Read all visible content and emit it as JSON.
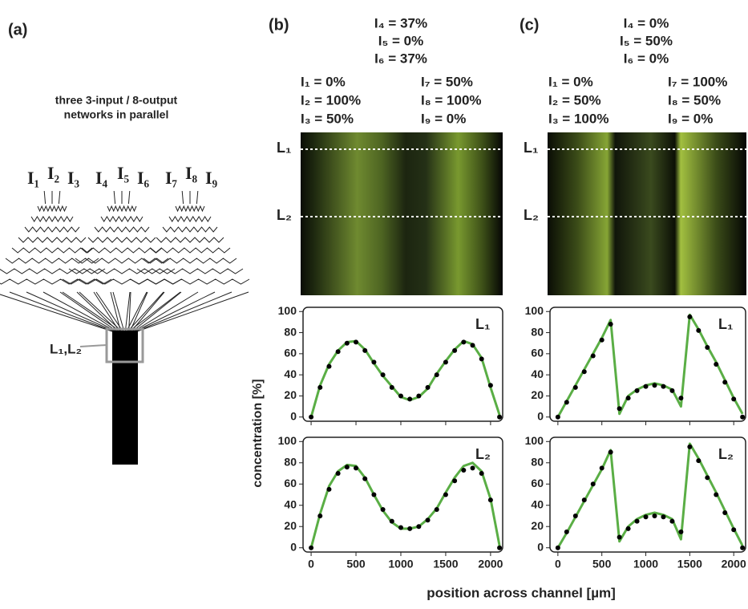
{
  "panel_a": {
    "label": "(a)",
    "title": [
      "three 3-input / 8-output",
      "networks in parallel"
    ],
    "inputs": [
      "I₁",
      "I₂",
      "I₃",
      "I₄",
      "I₅",
      "I₆",
      "I₇",
      "I₈",
      "I₉"
    ],
    "box_label": "L₁,L₂"
  },
  "panel_b": {
    "label": "(b)",
    "top": [
      "I₄ = 37%",
      "I₅ = 0%",
      "I₆ = 37%"
    ],
    "left": [
      "I₁ = 0%",
      "I₂ = 100%",
      "I₃ = 50%"
    ],
    "right": [
      "I₇ = 50%",
      "I₈ = 100%",
      "I₉ = 0%"
    ],
    "lines": [
      "L₁",
      "L₂"
    ]
  },
  "panel_c": {
    "label": "(c)",
    "top": [
      "I₄ = 0%",
      "I₅ = 50%",
      "I₆ = 0%"
    ],
    "left": [
      "I₁ = 0%",
      "I₂ = 50%",
      "I₃ = 100%"
    ],
    "right": [
      "I₇ = 100%",
      "I₈ = 50%",
      "I₉ = 0%"
    ],
    "lines": [
      "L₁",
      "L₂"
    ]
  },
  "y_label": "concentration [%]",
  "x_label": "position across channel [µm]",
  "chart_data": [
    {
      "type": "line",
      "annotation": "L₁",
      "x_tick_labels": false,
      "x": [
        0,
        100,
        200,
        300,
        400,
        500,
        600,
        700,
        800,
        900,
        1000,
        1100,
        1200,
        1300,
        1400,
        1500,
        1600,
        1700,
        1800,
        1900,
        2000,
        2100
      ],
      "xlim": [
        -90,
        2135
      ],
      "ylim": [
        -4,
        104
      ],
      "xticks": [
        0,
        500,
        1000,
        1500,
        2000
      ],
      "yticks": [
        0,
        20,
        40,
        60,
        80,
        100
      ],
      "series": [
        {
          "color": "#5aae45",
          "style": "line",
          "values": [
            0,
            30,
            50,
            63,
            71,
            72,
            64,
            51,
            39,
            29,
            19,
            16,
            19,
            27,
            41,
            53,
            64,
            72,
            69,
            56,
            28,
            2
          ]
        },
        {
          "color": "#000000",
          "style": "dots",
          "values": [
            0,
            28,
            48,
            62,
            70,
            71,
            63,
            52,
            40,
            28,
            20,
            17,
            20,
            28,
            40,
            52,
            63,
            71,
            68,
            55,
            30,
            0
          ]
        }
      ]
    },
    {
      "type": "line",
      "annotation": "L₂",
      "x_tick_labels": true,
      "x": [
        0,
        100,
        200,
        300,
        400,
        500,
        600,
        700,
        800,
        900,
        1000,
        1100,
        1200,
        1300,
        1400,
        1500,
        1600,
        1700,
        1800,
        1900,
        2000,
        2100
      ],
      "xlim": [
        -90,
        2135
      ],
      "ylim": [
        -4,
        104
      ],
      "xticks": [
        0,
        500,
        1000,
        1500,
        2000
      ],
      "yticks": [
        0,
        20,
        40,
        60,
        80,
        100
      ],
      "series": [
        {
          "color": "#5aae45",
          "style": "line",
          "values": [
            0,
            32,
            58,
            72,
            78,
            77,
            66,
            50,
            35,
            24,
            18,
            18,
            20,
            27,
            37,
            52,
            66,
            77,
            80,
            72,
            46,
            2
          ]
        },
        {
          "color": "#000000",
          "style": "dots",
          "values": [
            0,
            30,
            55,
            70,
            76,
            75,
            65,
            50,
            36,
            25,
            19,
            18,
            20,
            26,
            36,
            50,
            63,
            73,
            75,
            70,
            45,
            0
          ]
        }
      ]
    },
    {
      "type": "line",
      "annotation": "L₁",
      "x_tick_labels": false,
      "x": [
        0,
        100,
        200,
        300,
        400,
        500,
        600,
        700,
        800,
        900,
        1000,
        1100,
        1200,
        1300,
        1400,
        1500,
        1600,
        1700,
        1800,
        1900,
        2000,
        2100
      ],
      "xlim": [
        -90,
        2135
      ],
      "ylim": [
        -4,
        104
      ],
      "xticks": [
        0,
        500,
        1000,
        1500,
        2000
      ],
      "yticks": [
        0,
        20,
        40,
        60,
        80,
        100
      ],
      "series": [
        {
          "color": "#5aae45",
          "style": "line",
          "values": [
            0,
            15,
            30,
            45,
            60,
            75,
            92,
            3,
            20,
            26,
            30,
            32,
            30,
            26,
            10,
            97,
            83,
            67,
            52,
            35,
            18,
            3
          ]
        },
        {
          "color": "#000000",
          "style": "dots",
          "values": [
            0,
            14,
            28,
            43,
            58,
            73,
            88,
            8,
            18,
            25,
            29,
            30,
            29,
            25,
            18,
            95,
            82,
            66,
            50,
            33,
            17,
            0
          ]
        }
      ]
    },
    {
      "type": "line",
      "annotation": "L₂",
      "x_tick_labels": true,
      "x": [
        0,
        100,
        200,
        300,
        400,
        500,
        600,
        700,
        800,
        900,
        1000,
        1100,
        1200,
        1300,
        1400,
        1500,
        1600,
        1700,
        1800,
        1900,
        2000,
        2100
      ],
      "xlim": [
        -90,
        2135
      ],
      "ylim": [
        -4,
        104
      ],
      "xticks": [
        0,
        500,
        1000,
        1500,
        2000
      ],
      "yticks": [
        0,
        20,
        40,
        60,
        80,
        100
      ],
      "series": [
        {
          "color": "#5aae45",
          "style": "line",
          "values": [
            0,
            14,
            29,
            44,
            59,
            74,
            92,
            6,
            20,
            27,
            31,
            33,
            31,
            27,
            8,
            98,
            84,
            68,
            52,
            35,
            18,
            2
          ]
        },
        {
          "color": "#000000",
          "style": "dots",
          "values": [
            0,
            15,
            30,
            45,
            60,
            75,
            90,
            10,
            18,
            25,
            29,
            30,
            29,
            25,
            15,
            95,
            82,
            66,
            50,
            33,
            17,
            0
          ]
        }
      ]
    }
  ]
}
